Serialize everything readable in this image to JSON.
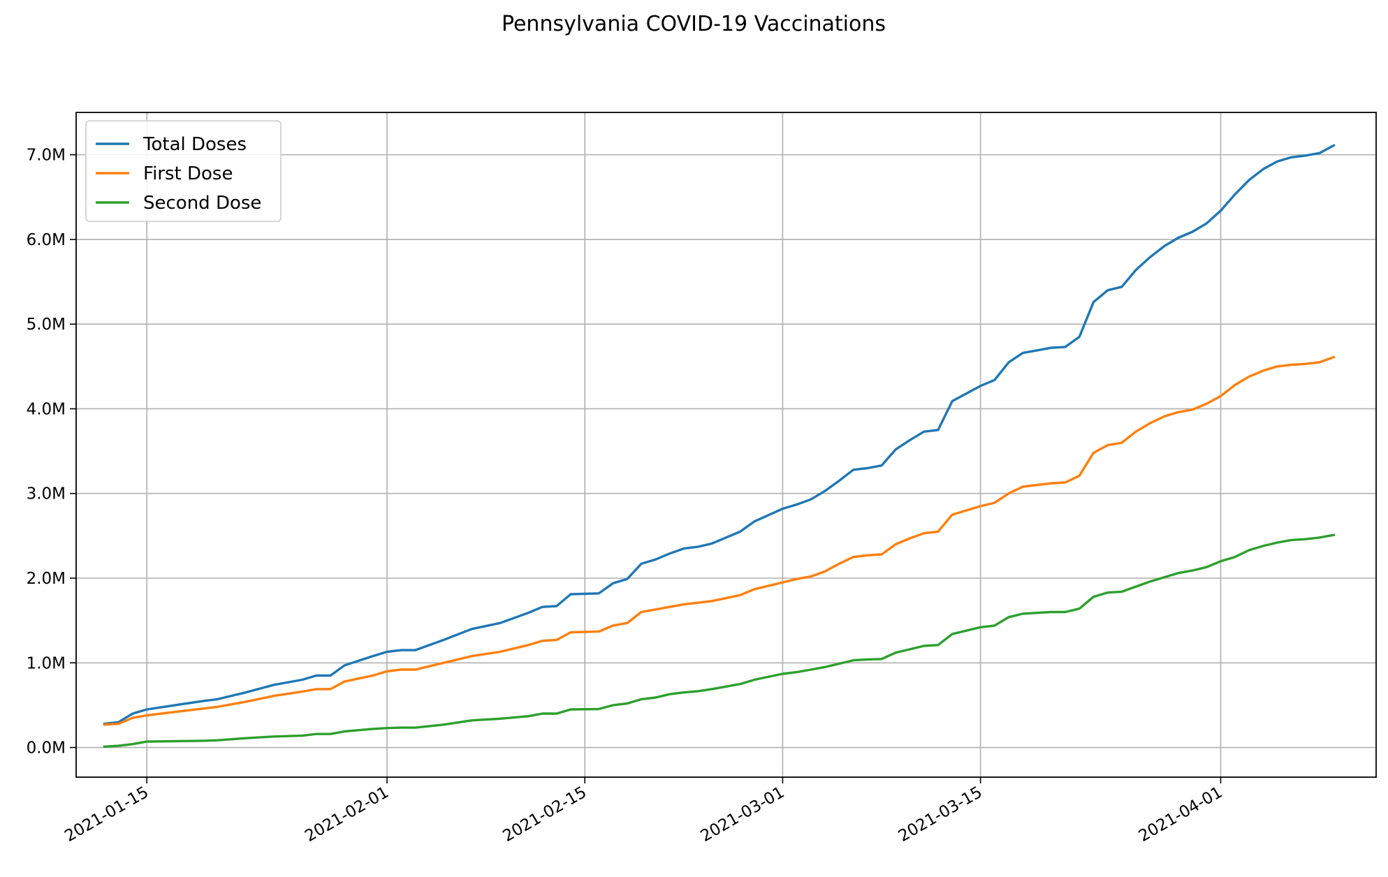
{
  "chart_data": {
    "type": "line",
    "title": "Pennsylvania COVID-19 Vaccinations",
    "xlabel": "",
    "ylabel": "",
    "x_axis": {
      "type": "date",
      "range": [
        "2021-01-10",
        "2021-04-12"
      ],
      "ticks": [
        "2021-01-15",
        "2021-02-01",
        "2021-02-15",
        "2021-03-01",
        "2021-03-15",
        "2021-04-01"
      ]
    },
    "y_axis": {
      "range": [
        -0.35,
        7.5
      ],
      "ticks": [
        0,
        1,
        2,
        3,
        4,
        5,
        6,
        7
      ],
      "tick_labels": [
        "0.0M",
        "1.0M",
        "2.0M",
        "3.0M",
        "4.0M",
        "5.0M",
        "6.0M",
        "7.0M"
      ]
    },
    "grid": true,
    "legend_position": "top-left",
    "series": [
      {
        "name": "Total Doses",
        "color": "#1f77b4",
        "points": [
          [
            "2021-01-12",
            0.28
          ],
          [
            "2021-01-13",
            0.3
          ],
          [
            "2021-01-14",
            0.4
          ],
          [
            "2021-01-15",
            0.45
          ],
          [
            "2021-01-17",
            0.5
          ],
          [
            "2021-01-19",
            0.55
          ],
          [
            "2021-01-20",
            0.57
          ],
          [
            "2021-01-22",
            0.65
          ],
          [
            "2021-01-24",
            0.74
          ],
          [
            "2021-01-26",
            0.8
          ],
          [
            "2021-01-27",
            0.85
          ],
          [
            "2021-01-28",
            0.85
          ],
          [
            "2021-01-29",
            0.97
          ],
          [
            "2021-01-31",
            1.08
          ],
          [
            "2021-02-01",
            1.13
          ],
          [
            "2021-02-02",
            1.15
          ],
          [
            "2021-02-03",
            1.15
          ],
          [
            "2021-02-05",
            1.27
          ],
          [
            "2021-02-07",
            1.4
          ],
          [
            "2021-02-09",
            1.47
          ],
          [
            "2021-02-11",
            1.59
          ],
          [
            "2021-02-12",
            1.66
          ],
          [
            "2021-02-13",
            1.67
          ],
          [
            "2021-02-14",
            1.81
          ],
          [
            "2021-02-16",
            1.82
          ],
          [
            "2021-02-17",
            1.94
          ],
          [
            "2021-02-18",
            1.99
          ],
          [
            "2021-02-19",
            2.17
          ],
          [
            "2021-02-20",
            2.22
          ],
          [
            "2021-02-21",
            2.29
          ],
          [
            "2021-02-22",
            2.35
          ],
          [
            "2021-02-23",
            2.37
          ],
          [
            "2021-02-24",
            2.41
          ],
          [
            "2021-02-26",
            2.55
          ],
          [
            "2021-02-27",
            2.67
          ],
          [
            "2021-03-01",
            2.82
          ],
          [
            "2021-03-02",
            2.87
          ],
          [
            "2021-03-03",
            2.93
          ],
          [
            "2021-03-04",
            3.03
          ],
          [
            "2021-03-05",
            3.15
          ],
          [
            "2021-03-06",
            3.28
          ],
          [
            "2021-03-07",
            3.3
          ],
          [
            "2021-03-08",
            3.33
          ],
          [
            "2021-03-09",
            3.52
          ],
          [
            "2021-03-10",
            3.63
          ],
          [
            "2021-03-11",
            3.73
          ],
          [
            "2021-03-12",
            3.75
          ],
          [
            "2021-03-13",
            4.09
          ],
          [
            "2021-03-14",
            4.18
          ],
          [
            "2021-03-15",
            4.27
          ],
          [
            "2021-03-16",
            4.34
          ],
          [
            "2021-03-17",
            4.55
          ],
          [
            "2021-03-18",
            4.66
          ],
          [
            "2021-03-19",
            4.69
          ],
          [
            "2021-03-20",
            4.72
          ],
          [
            "2021-03-21",
            4.73
          ],
          [
            "2021-03-22",
            4.85
          ],
          [
            "2021-03-23",
            5.26
          ],
          [
            "2021-03-24",
            5.4
          ],
          [
            "2021-03-25",
            5.44
          ],
          [
            "2021-03-26",
            5.64
          ],
          [
            "2021-03-27",
            5.79
          ],
          [
            "2021-03-28",
            5.92
          ],
          [
            "2021-03-29",
            6.02
          ],
          [
            "2021-03-30",
            6.09
          ],
          [
            "2021-03-31",
            6.19
          ],
          [
            "2021-04-01",
            6.34
          ],
          [
            "2021-04-02",
            6.53
          ],
          [
            "2021-04-03",
            6.7
          ],
          [
            "2021-04-04",
            6.83
          ],
          [
            "2021-04-05",
            6.92
          ],
          [
            "2021-04-06",
            6.97
          ],
          [
            "2021-04-07",
            6.99
          ],
          [
            "2021-04-08",
            7.02
          ],
          [
            "2021-04-09",
            7.11
          ]
        ]
      },
      {
        "name": "First Dose",
        "color": "#ff7f0e",
        "points": [
          [
            "2021-01-12",
            0.27
          ],
          [
            "2021-01-13",
            0.28
          ],
          [
            "2021-01-14",
            0.35
          ],
          [
            "2021-01-15",
            0.38
          ],
          [
            "2021-01-17",
            0.42
          ],
          [
            "2021-01-19",
            0.46
          ],
          [
            "2021-01-20",
            0.48
          ],
          [
            "2021-01-22",
            0.54
          ],
          [
            "2021-01-24",
            0.61
          ],
          [
            "2021-01-26",
            0.66
          ],
          [
            "2021-01-27",
            0.69
          ],
          [
            "2021-01-28",
            0.69
          ],
          [
            "2021-01-29",
            0.78
          ],
          [
            "2021-01-31",
            0.85
          ],
          [
            "2021-02-01",
            0.9
          ],
          [
            "2021-02-02",
            0.92
          ],
          [
            "2021-02-03",
            0.92
          ],
          [
            "2021-02-05",
            1.0
          ],
          [
            "2021-02-07",
            1.08
          ],
          [
            "2021-02-09",
            1.13
          ],
          [
            "2021-02-11",
            1.21
          ],
          [
            "2021-02-12",
            1.26
          ],
          [
            "2021-02-13",
            1.27
          ],
          [
            "2021-02-14",
            1.36
          ],
          [
            "2021-02-16",
            1.37
          ],
          [
            "2021-02-17",
            1.44
          ],
          [
            "2021-02-18",
            1.47
          ],
          [
            "2021-02-19",
            1.6
          ],
          [
            "2021-02-20",
            1.63
          ],
          [
            "2021-02-21",
            1.66
          ],
          [
            "2021-02-22",
            1.69
          ],
          [
            "2021-02-23",
            1.71
          ],
          [
            "2021-02-24",
            1.73
          ],
          [
            "2021-02-26",
            1.8
          ],
          [
            "2021-02-27",
            1.87
          ],
          [
            "2021-03-01",
            1.95
          ],
          [
            "2021-03-02",
            1.99
          ],
          [
            "2021-03-03",
            2.02
          ],
          [
            "2021-03-04",
            2.08
          ],
          [
            "2021-03-05",
            2.17
          ],
          [
            "2021-03-06",
            2.25
          ],
          [
            "2021-03-07",
            2.27
          ],
          [
            "2021-03-08",
            2.28
          ],
          [
            "2021-03-09",
            2.4
          ],
          [
            "2021-03-10",
            2.47
          ],
          [
            "2021-03-11",
            2.53
          ],
          [
            "2021-03-12",
            2.55
          ],
          [
            "2021-03-13",
            2.75
          ],
          [
            "2021-03-14",
            2.8
          ],
          [
            "2021-03-15",
            2.85
          ],
          [
            "2021-03-16",
            2.89
          ],
          [
            "2021-03-17",
            3.0
          ],
          [
            "2021-03-18",
            3.08
          ],
          [
            "2021-03-19",
            3.1
          ],
          [
            "2021-03-20",
            3.12
          ],
          [
            "2021-03-21",
            3.13
          ],
          [
            "2021-03-22",
            3.21
          ],
          [
            "2021-03-23",
            3.48
          ],
          [
            "2021-03-24",
            3.57
          ],
          [
            "2021-03-25",
            3.6
          ],
          [
            "2021-03-26",
            3.73
          ],
          [
            "2021-03-27",
            3.83
          ],
          [
            "2021-03-28",
            3.91
          ],
          [
            "2021-03-29",
            3.96
          ],
          [
            "2021-03-30",
            3.99
          ],
          [
            "2021-03-31",
            4.06
          ],
          [
            "2021-04-01",
            4.15
          ],
          [
            "2021-04-02",
            4.28
          ],
          [
            "2021-04-03",
            4.38
          ],
          [
            "2021-04-04",
            4.45
          ],
          [
            "2021-04-05",
            4.5
          ],
          [
            "2021-04-06",
            4.52
          ],
          [
            "2021-04-07",
            4.53
          ],
          [
            "2021-04-08",
            4.55
          ],
          [
            "2021-04-09",
            4.61
          ]
        ]
      },
      {
        "name": "Second Dose",
        "color": "#2ca02c",
        "points": [
          [
            "2021-01-12",
            0.01
          ],
          [
            "2021-01-13",
            0.02
          ],
          [
            "2021-01-14",
            0.04
          ],
          [
            "2021-01-15",
            0.07
          ],
          [
            "2021-01-17",
            0.075
          ],
          [
            "2021-01-19",
            0.08
          ],
          [
            "2021-01-20",
            0.085
          ],
          [
            "2021-01-22",
            0.11
          ],
          [
            "2021-01-24",
            0.13
          ],
          [
            "2021-01-26",
            0.14
          ],
          [
            "2021-01-27",
            0.16
          ],
          [
            "2021-01-28",
            0.16
          ],
          [
            "2021-01-29",
            0.19
          ],
          [
            "2021-01-31",
            0.22
          ],
          [
            "2021-02-01",
            0.23
          ],
          [
            "2021-02-02",
            0.235
          ],
          [
            "2021-02-03",
            0.235
          ],
          [
            "2021-02-05",
            0.27
          ],
          [
            "2021-02-07",
            0.32
          ],
          [
            "2021-02-09",
            0.34
          ],
          [
            "2021-02-11",
            0.37
          ],
          [
            "2021-02-12",
            0.4
          ],
          [
            "2021-02-13",
            0.4
          ],
          [
            "2021-02-14",
            0.45
          ],
          [
            "2021-02-16",
            0.455
          ],
          [
            "2021-02-17",
            0.5
          ],
          [
            "2021-02-18",
            0.52
          ],
          [
            "2021-02-19",
            0.57
          ],
          [
            "2021-02-20",
            0.59
          ],
          [
            "2021-02-21",
            0.63
          ],
          [
            "2021-02-22",
            0.65
          ],
          [
            "2021-02-23",
            0.665
          ],
          [
            "2021-02-24",
            0.69
          ],
          [
            "2021-02-26",
            0.75
          ],
          [
            "2021-02-27",
            0.8
          ],
          [
            "2021-03-01",
            0.87
          ],
          [
            "2021-03-02",
            0.89
          ],
          [
            "2021-03-03",
            0.92
          ],
          [
            "2021-03-04",
            0.95
          ],
          [
            "2021-03-05",
            0.99
          ],
          [
            "2021-03-06",
            1.03
          ],
          [
            "2021-03-07",
            1.04
          ],
          [
            "2021-03-08",
            1.045
          ],
          [
            "2021-03-09",
            1.12
          ],
          [
            "2021-03-10",
            1.16
          ],
          [
            "2021-03-11",
            1.2
          ],
          [
            "2021-03-12",
            1.21
          ],
          [
            "2021-03-13",
            1.34
          ],
          [
            "2021-03-14",
            1.38
          ],
          [
            "2021-03-15",
            1.42
          ],
          [
            "2021-03-16",
            1.44
          ],
          [
            "2021-03-17",
            1.54
          ],
          [
            "2021-03-18",
            1.58
          ],
          [
            "2021-03-19",
            1.59
          ],
          [
            "2021-03-20",
            1.6
          ],
          [
            "2021-03-21",
            1.6
          ],
          [
            "2021-03-22",
            1.64
          ],
          [
            "2021-03-23",
            1.78
          ],
          [
            "2021-03-24",
            1.83
          ],
          [
            "2021-03-25",
            1.84
          ],
          [
            "2021-03-26",
            1.9
          ],
          [
            "2021-03-27",
            1.96
          ],
          [
            "2021-03-28",
            2.01
          ],
          [
            "2021-03-29",
            2.06
          ],
          [
            "2021-03-30",
            2.09
          ],
          [
            "2021-03-31",
            2.13
          ],
          [
            "2021-04-01",
            2.2
          ],
          [
            "2021-04-02",
            2.25
          ],
          [
            "2021-04-03",
            2.33
          ],
          [
            "2021-04-04",
            2.38
          ],
          [
            "2021-04-05",
            2.42
          ],
          [
            "2021-04-06",
            2.45
          ],
          [
            "2021-04-07",
            2.46
          ],
          [
            "2021-04-08",
            2.48
          ],
          [
            "2021-04-09",
            2.51
          ]
        ]
      }
    ]
  }
}
